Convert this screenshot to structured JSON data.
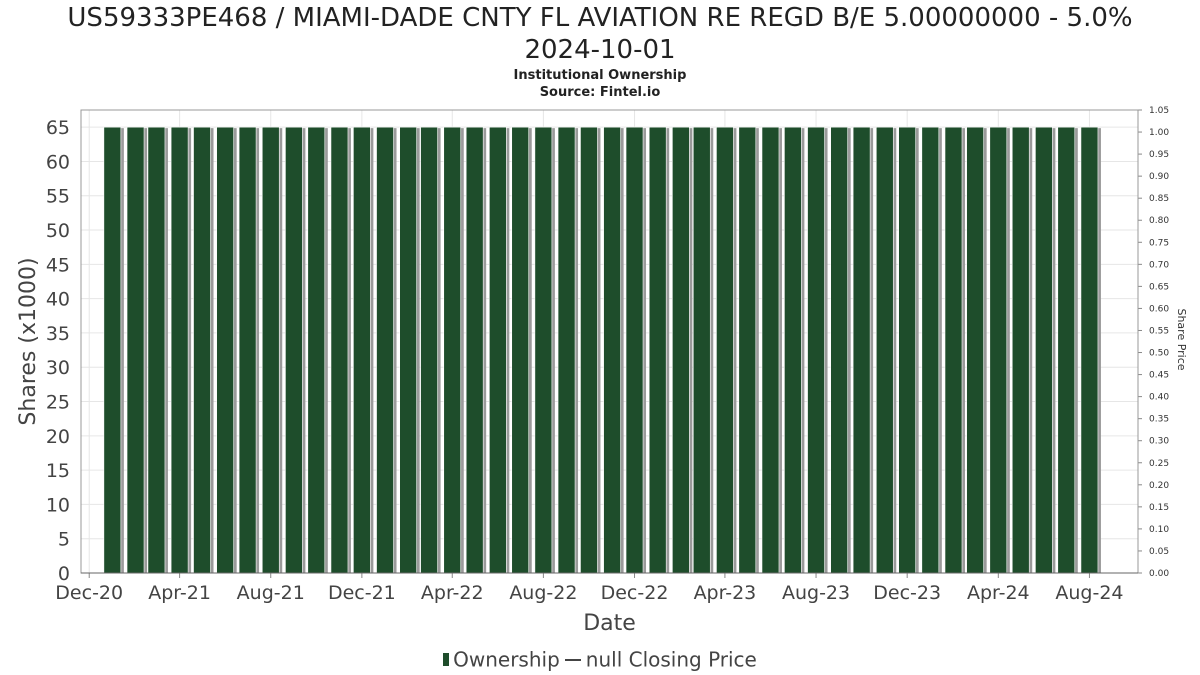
{
  "chart_data": {
    "type": "bar",
    "title": "US59333PE468 / MIAMI-DADE CNTY FL AVIATION RE REGD B/E 5.00000000 - 5.0% 2024-10-01",
    "title_line1": "US59333PE468 / MIAMI-DADE CNTY FL AVIATION RE REGD B/E 5.00000000 - 5.0%",
    "title_line2": "2024-10-01",
    "subtitle": "Institutional Ownership",
    "source": "Source: Fintel.io",
    "xlabel": "Date",
    "ylabel": "Shares (x1000)",
    "y2label": "Share Price",
    "ylim": [
      0,
      67.5
    ],
    "y2lim": [
      0,
      1.05
    ],
    "xlim": [
      "2020-11-20",
      "2024-10-05"
    ],
    "yticks": [
      0,
      5,
      10,
      15,
      20,
      25,
      30,
      35,
      40,
      45,
      50,
      55,
      60,
      65
    ],
    "y2ticks": [
      "0.00",
      "0.05",
      "0.10",
      "0.15",
      "0.20",
      "0.25",
      "0.30",
      "0.35",
      "0.40",
      "0.45",
      "0.50",
      "0.55",
      "0.60",
      "0.65",
      "0.70",
      "0.75",
      "0.80",
      "0.85",
      "0.90",
      "0.95",
      "1.00",
      "1.05"
    ],
    "xticks": [
      {
        "label": "Dec-20",
        "date": "2020-12-01"
      },
      {
        "label": "Apr-21",
        "date": "2021-04-01"
      },
      {
        "label": "Aug-21",
        "date": "2021-08-01"
      },
      {
        "label": "Dec-21",
        "date": "2021-12-01"
      },
      {
        "label": "Apr-22",
        "date": "2022-04-01"
      },
      {
        "label": "Aug-22",
        "date": "2022-08-01"
      },
      {
        "label": "Dec-22",
        "date": "2022-12-01"
      },
      {
        "label": "Apr-23",
        "date": "2023-04-01"
      },
      {
        "label": "Aug-23",
        "date": "2023-08-01"
      },
      {
        "label": "Dec-23",
        "date": "2023-12-01"
      },
      {
        "label": "Apr-24",
        "date": "2024-04-01"
      },
      {
        "label": "Aug-24",
        "date": "2024-08-01"
      }
    ],
    "series": [
      {
        "name": "Ownership",
        "color": "#1e4d2b",
        "start_date": "2021-01-01",
        "interval_months": 1,
        "values": [
          65,
          65,
          65,
          65,
          65,
          65,
          65,
          65,
          65,
          65,
          65,
          65,
          65,
          65,
          65,
          65,
          65,
          65,
          65,
          65,
          65,
          65,
          65,
          65,
          65,
          65,
          65,
          65,
          65,
          65,
          65,
          65,
          65,
          65,
          65,
          65,
          65,
          65,
          65,
          65,
          65,
          65,
          65,
          65
        ]
      },
      {
        "name": "null Closing Price",
        "color": "#444444",
        "values": []
      }
    ],
    "legend": [
      "Ownership",
      "null Closing Price"
    ]
  }
}
